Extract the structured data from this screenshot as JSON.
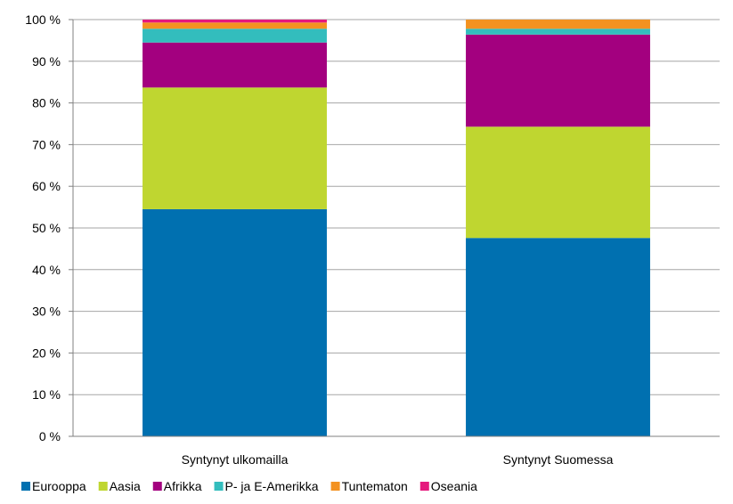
{
  "chart_data": {
    "type": "bar",
    "stacked": true,
    "categories": [
      "Syntynyt ulkomailla",
      "Syntynyt Suomessa"
    ],
    "series": [
      {
        "name": "Eurooppa",
        "color": "#0070B0",
        "values": [
          54.5,
          47.6
        ]
      },
      {
        "name": "Aasia",
        "color": "#BFD630",
        "values": [
          29.2,
          26.7
        ]
      },
      {
        "name": "Afrikka",
        "color": "#A3007F",
        "values": [
          10.8,
          22.1
        ]
      },
      {
        "name": "P- ja E-Amerikka",
        "color": "#33BDBD",
        "values": [
          3.3,
          1.4
        ]
      },
      {
        "name": "Tuntematon",
        "color": "#F39221",
        "values": [
          1.5,
          2.2
        ]
      },
      {
        "name": "Oseania",
        "color": "#E5197D",
        "values": [
          0.7,
          0.0
        ]
      }
    ],
    "y_ticks": [
      "0 %",
      "10 %",
      "20 %",
      "30 %",
      "40 %",
      "50 %",
      "60 %",
      "70 %",
      "80 %",
      "90 %",
      "100 %"
    ],
    "ylim": [
      0,
      100
    ],
    "grid": true,
    "legend_position": "bottom"
  }
}
